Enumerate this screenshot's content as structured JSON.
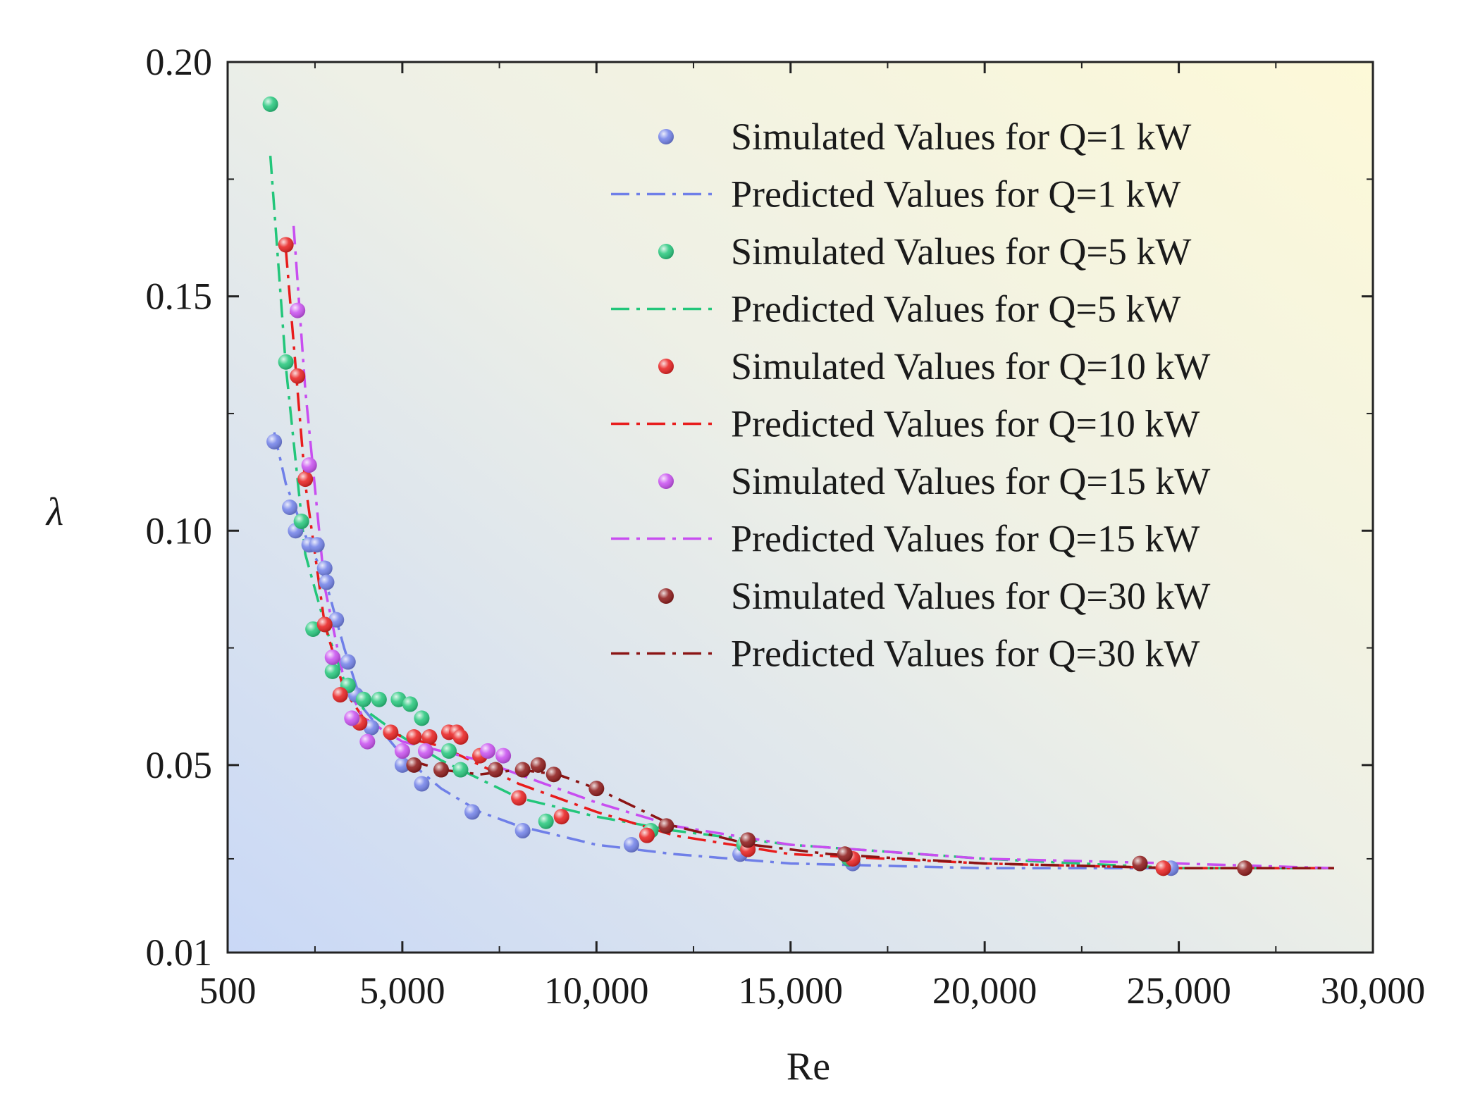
{
  "chart_data": {
    "type": "scatter",
    "title": "",
    "xlabel": "Re",
    "ylabel": "λ",
    "xlim": [
      500,
      30000
    ],
    "ylim": [
      0.01,
      0.2
    ],
    "xticks": [
      500,
      5000,
      10000,
      15000,
      20000,
      25000,
      30000
    ],
    "xtick_labels": [
      "500",
      "5,000",
      "10,000",
      "15,000",
      "20,000",
      "25,000",
      "30,000"
    ],
    "yticks": [
      0.01,
      0.05,
      0.1,
      0.15,
      0.2
    ],
    "ytick_labels": [
      "0.01",
      "0.05",
      "0.10",
      "0.15",
      "0.20"
    ],
    "legend_position": "top-right",
    "series": [
      {
        "name": "Simulated Values for Q=1 kW",
        "kind": "points",
        "color": "#6f7fe8",
        "x": [
          1700,
          2100,
          2250,
          2600,
          2800,
          3000,
          3050,
          3300,
          3600,
          3800,
          4200,
          5000,
          5500,
          6800,
          8100,
          10900,
          13700,
          16600,
          24800
        ],
        "y": [
          0.119,
          0.105,
          0.1,
          0.097,
          0.097,
          0.092,
          0.089,
          0.081,
          0.072,
          0.065,
          0.058,
          0.05,
          0.046,
          0.04,
          0.036,
          0.033,
          0.031,
          0.029,
          0.028
        ]
      },
      {
        "name": "Predicted Values for Q=1 kW",
        "kind": "line",
        "color": "#6f7fe8",
        "x": [
          1700,
          2000,
          2500,
          3000,
          3500,
          4000,
          5000,
          6000,
          7000,
          8000,
          10000,
          12000,
          15000,
          20000,
          25000,
          29000
        ],
        "y": [
          0.121,
          0.11,
          0.099,
          0.09,
          0.075,
          0.062,
          0.052,
          0.045,
          0.04,
          0.037,
          0.033,
          0.031,
          0.029,
          0.028,
          0.028,
          0.028
        ]
      },
      {
        "name": "Simulated Values for Q=5 kW",
        "kind": "points",
        "color": "#22c67a",
        "x": [
          1600,
          2000,
          2400,
          2700,
          3000,
          3200,
          3600,
          4000,
          4400,
          4900,
          5200,
          5500,
          6200,
          6500,
          8700,
          11400,
          13800,
          16500,
          24600
        ],
        "y": [
          0.191,
          0.136,
          0.102,
          0.079,
          0.08,
          0.07,
          0.067,
          0.064,
          0.064,
          0.064,
          0.063,
          0.06,
          0.053,
          0.049,
          0.038,
          0.036,
          0.033,
          0.03,
          0.028
        ]
      },
      {
        "name": "Predicted Values for Q=5 kW",
        "kind": "line",
        "color": "#22c67a",
        "x": [
          1600,
          2000,
          2500,
          3000,
          3500,
          4000,
          5000,
          6000,
          7000,
          8000,
          10000,
          12000,
          15000,
          20000,
          25000,
          29000
        ],
        "y": [
          0.18,
          0.135,
          0.095,
          0.08,
          0.068,
          0.062,
          0.056,
          0.051,
          0.047,
          0.043,
          0.039,
          0.036,
          0.033,
          0.03,
          0.028,
          0.028
        ]
      },
      {
        "name": "Simulated Values for Q=10 kW",
        "kind": "points",
        "color": "#e81c1c",
        "x": [
          2000,
          2300,
          2500,
          3000,
          3400,
          3900,
          4700,
          5300,
          5700,
          6200,
          6400,
          6500,
          7000,
          8000,
          9100,
          11300,
          13900,
          16600,
          24600
        ],
        "y": [
          0.161,
          0.133,
          0.111,
          0.08,
          0.065,
          0.059,
          0.057,
          0.056,
          0.056,
          0.057,
          0.057,
          0.056,
          0.052,
          0.043,
          0.039,
          0.035,
          0.032,
          0.03,
          0.028
        ]
      },
      {
        "name": "Predicted Values for Q=10 kW",
        "kind": "line",
        "color": "#e81c1c",
        "x": [
          2000,
          2500,
          3000,
          3500,
          4000,
          5000,
          6000,
          7000,
          8000,
          10000,
          12000,
          15000,
          20000,
          25000,
          29000
        ],
        "y": [
          0.16,
          0.11,
          0.08,
          0.066,
          0.06,
          0.056,
          0.054,
          0.05,
          0.046,
          0.04,
          0.035,
          0.031,
          0.029,
          0.028,
          0.028
        ]
      },
      {
        "name": "Simulated Values for Q=15 kW",
        "kind": "points",
        "color": "#c84ef0",
        "x": [
          2300,
          2600,
          3200,
          3700,
          4100,
          5000,
          5600,
          7200,
          7600
        ],
        "y": [
          0.147,
          0.114,
          0.073,
          0.06,
          0.055,
          0.053,
          0.053,
          0.053,
          0.052
        ]
      },
      {
        "name": "Predicted Values for Q=15 kW",
        "kind": "line",
        "color": "#c84ef0",
        "x": [
          2200,
          2500,
          3000,
          3500,
          4000,
          5000,
          6000,
          7000,
          8000,
          10000,
          12000,
          15000,
          20000,
          25000,
          29000
        ],
        "y": [
          0.165,
          0.13,
          0.088,
          0.068,
          0.06,
          0.055,
          0.053,
          0.051,
          0.048,
          0.042,
          0.037,
          0.033,
          0.03,
          0.029,
          0.028
        ]
      },
      {
        "name": "Simulated Values for Q=30 kW",
        "kind": "points",
        "color": "#8b1414",
        "x": [
          5300,
          6000,
          7400,
          8100,
          8500,
          8900,
          10000,
          11800,
          13900,
          16400,
          24000,
          26700
        ],
        "y": [
          0.05,
          0.049,
          0.049,
          0.049,
          0.05,
          0.048,
          0.045,
          0.037,
          0.034,
          0.031,
          0.029,
          0.028
        ]
      },
      {
        "name": "Predicted Values for Q=30 kW",
        "kind": "line",
        "color": "#8b1414",
        "x": [
          5200,
          6000,
          7000,
          8000,
          9000,
          10000,
          11000,
          12000,
          14000,
          16000,
          20000,
          25000,
          29000
        ],
        "y": [
          0.051,
          0.049,
          0.048,
          0.049,
          0.048,
          0.045,
          0.041,
          0.037,
          0.033,
          0.031,
          0.029,
          0.028,
          0.028
        ]
      }
    ]
  }
}
